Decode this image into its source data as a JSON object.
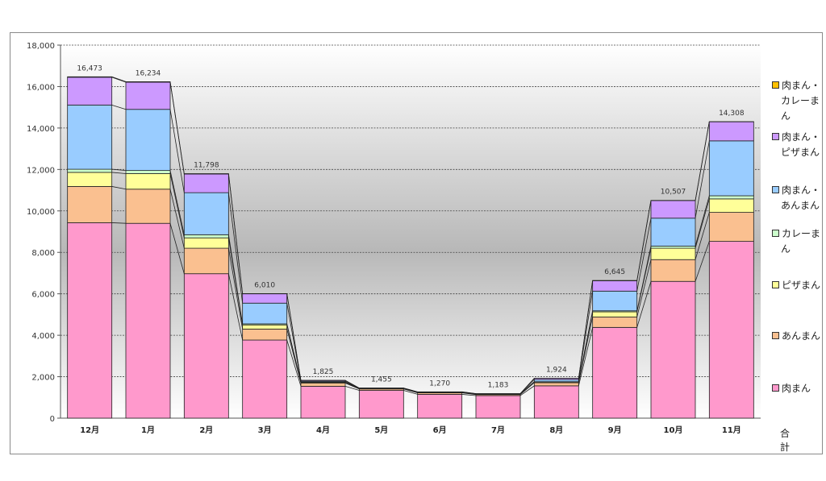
{
  "chart_data": {
    "type": "bar",
    "stacked": true,
    "categories": [
      "12月",
      "1月",
      "2月",
      "3月",
      "4月",
      "5月",
      "6月",
      "7月",
      "8月",
      "9月",
      "10月",
      "11月"
    ],
    "ylim": [
      0,
      18000
    ],
    "yticks": [
      "0",
      "2,000",
      "4,000",
      "6,000",
      "8,000",
      "10,000",
      "12,000",
      "14,000",
      "16,000",
      "18,000"
    ],
    "ytick_values": [
      0,
      2000,
      4000,
      6000,
      8000,
      10000,
      12000,
      14000,
      16000,
      18000
    ],
    "grid": true,
    "legend_position": "right",
    "series": [
      {
        "name": "肉まん",
        "color": "#ff99cc",
        "values": [
          9430,
          9400,
          6970,
          3770,
          1540,
          1340,
          1150,
          1090,
          1560,
          4380,
          6600,
          8530
        ]
      },
      {
        "name": "あんまん",
        "color": "#fac090",
        "values": [
          1750,
          1650,
          1230,
          530,
          150,
          70,
          70,
          50,
          150,
          500,
          1050,
          1400
        ]
      },
      {
        "name": "ピザまん",
        "color": "#ffff99",
        "values": [
          680,
          750,
          500,
          200,
          40,
          15,
          15,
          10,
          40,
          250,
          550,
          650
        ]
      },
      {
        "name": "カレーま\nん",
        "color": "#ccffcc",
        "values": [
          150,
          150,
          150,
          50,
          10,
          5,
          5,
          3,
          10,
          50,
          100,
          150
        ]
      },
      {
        "name": "肉まん・\nあんまん",
        "color": "#99ccff",
        "values": [
          3100,
          2950,
          2030,
          1000,
          40,
          15,
          20,
          20,
          100,
          950,
          1350,
          2650
        ]
      },
      {
        "name": "肉まん・\nピザまん",
        "color": "#cc99ff",
        "values": [
          1340,
          1310,
          900,
          450,
          40,
          5,
          5,
          5,
          60,
          500,
          850,
          920
        ]
      },
      {
        "name": "肉まん・\nカレーま\nん",
        "color": "#ffc000",
        "values": [
          23,
          24,
          18,
          10,
          5,
          5,
          5,
          5,
          4,
          15,
          7,
          8
        ]
      }
    ],
    "totals": [
      "16,473",
      "16,234",
      "11,798",
      "6,010",
      "1,825",
      "1,455",
      "1,270",
      "1,183",
      "1,924",
      "6,645",
      "10,507",
      "14,308"
    ],
    "total_label": "合計"
  }
}
